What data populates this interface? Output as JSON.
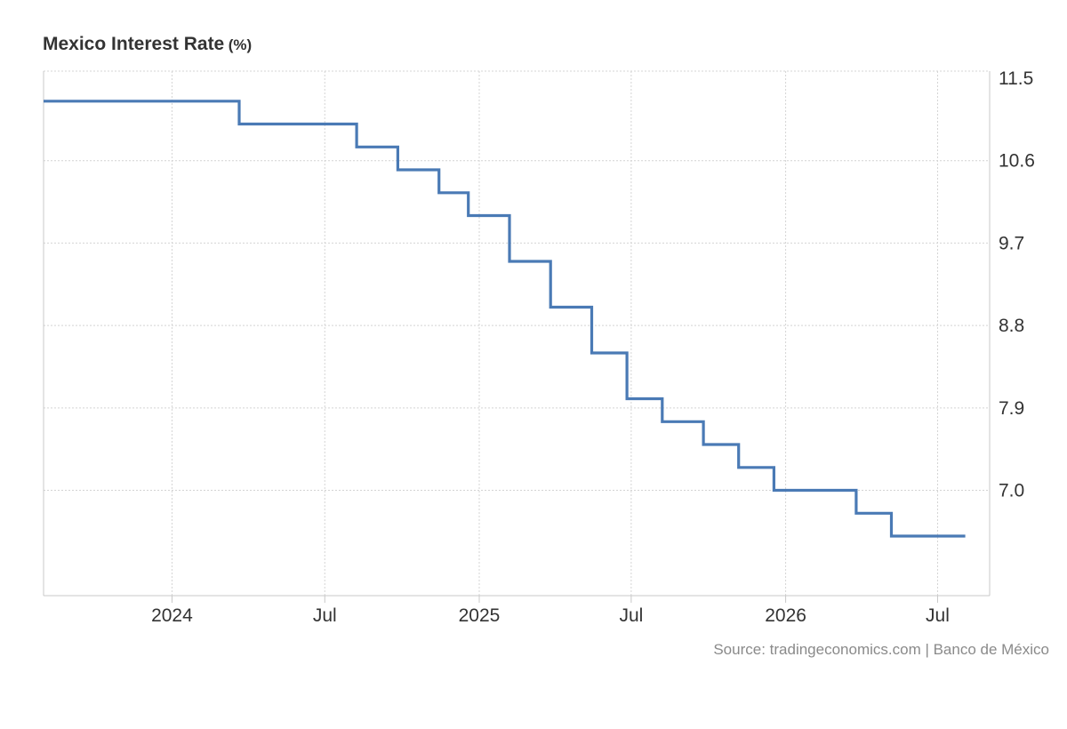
{
  "chart_data": {
    "type": "line",
    "title": "Mexico Interest Rate",
    "unit": "(%)",
    "source": "Source: tradingeconomics.com | Banco de México",
    "step": true,
    "grid": true,
    "y_axis_position": "right",
    "ylim": [
      5.85,
      11.5
    ],
    "yticks": [
      "11.5",
      "10.6",
      "9.7",
      "8.8",
      "7.9",
      "7.0"
    ],
    "x_ticks": [
      {
        "label": "2024",
        "date": "2024-01-01"
      },
      {
        "label": "Jul",
        "date": "2024-07-01"
      },
      {
        "label": "2025",
        "date": "2025-01-01"
      },
      {
        "label": "Jul",
        "date": "2025-07-01"
      },
      {
        "label": "2026",
        "date": "2026-01-01"
      },
      {
        "label": "Jul",
        "date": "2026-07-01"
      }
    ],
    "xlim": [
      "2023-08-01",
      "2026-09-01"
    ],
    "series": [
      {
        "color": "#4a7ab5",
        "points": [
          {
            "date": "2023-08-01",
            "value": 11.25
          },
          {
            "date": "2024-03-21",
            "value": 11.0
          },
          {
            "date": "2024-08-08",
            "value": 10.75
          },
          {
            "date": "2024-09-26",
            "value": 10.5
          },
          {
            "date": "2024-11-14",
            "value": 10.25
          },
          {
            "date": "2024-12-19",
            "value": 10.0
          },
          {
            "date": "2025-02-06",
            "value": 9.5
          },
          {
            "date": "2025-03-27",
            "value": 9.0
          },
          {
            "date": "2025-05-15",
            "value": 8.5
          },
          {
            "date": "2025-06-26",
            "value": 8.0
          },
          {
            "date": "2025-08-07",
            "value": 7.75
          },
          {
            "date": "2025-09-25",
            "value": 7.5
          },
          {
            "date": "2025-11-06",
            "value": 7.25
          },
          {
            "date": "2025-12-18",
            "value": 7.0
          },
          {
            "date": "2026-03-26",
            "value": 6.75
          },
          {
            "date": "2026-05-07",
            "value": 6.5
          },
          {
            "date": "2026-08-03",
            "value": 6.5
          }
        ]
      }
    ]
  }
}
